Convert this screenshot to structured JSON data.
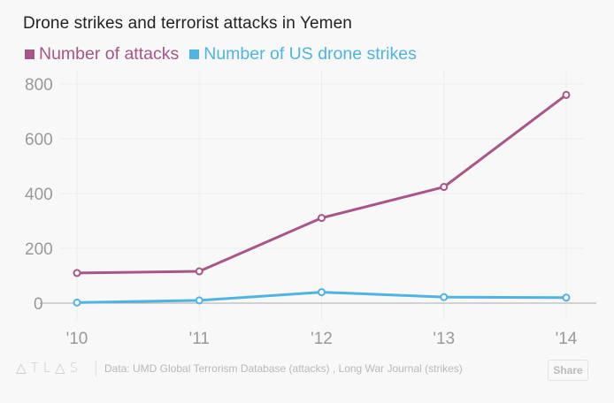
{
  "chart_data": {
    "type": "line",
    "title": "Drone strikes and terrorist attacks in Yemen",
    "categories": [
      "'10",
      "'11",
      "'12",
      "'13",
      "'14"
    ],
    "series": [
      {
        "name": "Number of attacks",
        "color": "#a8558a",
        "values": [
          110,
          116,
          311,
          424,
          760
        ]
      },
      {
        "name": "Number of US drone strikes",
        "color": "#4fb3e3",
        "values": [
          2,
          10,
          40,
          22,
          20
        ]
      }
    ],
    "yticks": [
      0,
      200,
      400,
      600,
      800
    ],
    "ylim": [
      0,
      800
    ],
    "xlabel": "",
    "ylabel": "",
    "grid": true,
    "legend": "top-left"
  },
  "footer": {
    "logo": "ATLAS",
    "source": "Data: UMD Global Terrorism Database (attacks) , Long War Journal (strikes)",
    "share_label": "Share"
  }
}
